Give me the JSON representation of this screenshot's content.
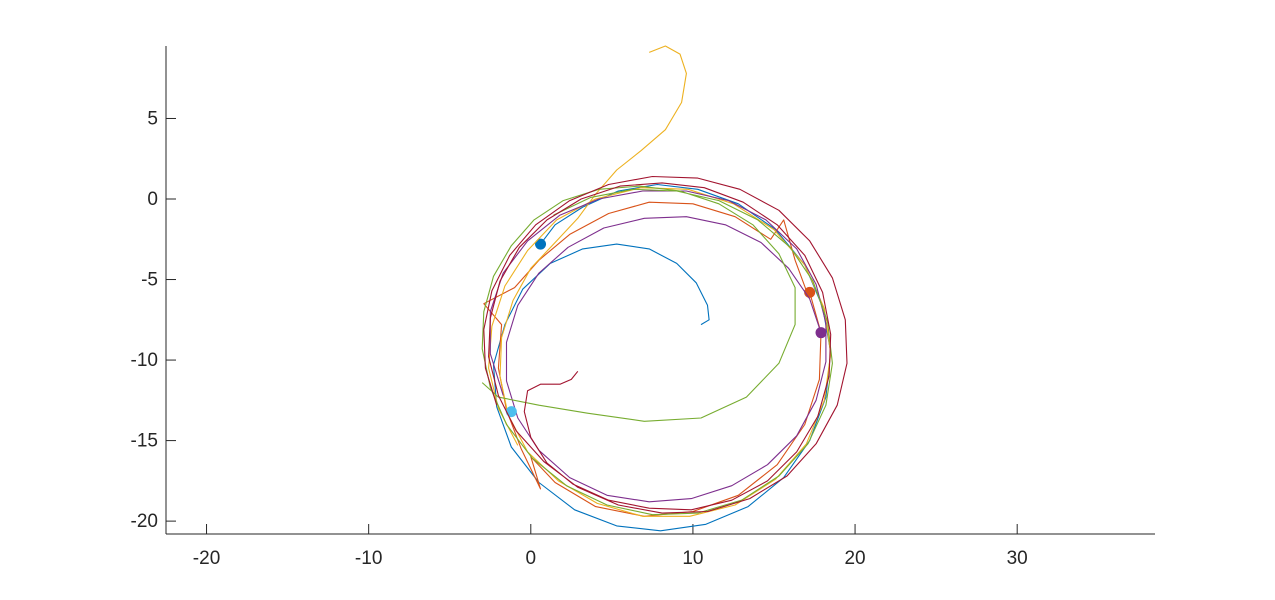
{
  "chart_data": {
    "type": "line",
    "title": "",
    "xlabel": "",
    "ylabel": "",
    "xlim": [
      -22.5,
      38.5
    ],
    "ylim": [
      -20.8,
      9.5
    ],
    "xticks": [
      -20,
      -10,
      0,
      10,
      20,
      30
    ],
    "yticks": [
      -20,
      -15,
      -10,
      -5,
      0,
      5
    ],
    "grid": false,
    "legend": "none",
    "series": [
      {
        "color": "#0072BD",
        "marker_end": true,
        "points": [
          [
            10.5,
            -7.8
          ],
          [
            11.0,
            -7.5
          ],
          [
            10.9,
            -6.6
          ],
          [
            10.2,
            -5.2
          ],
          [
            9.0,
            -4.0
          ],
          [
            7.3,
            -3.1
          ],
          [
            5.3,
            -2.8
          ],
          [
            3.2,
            -3.1
          ],
          [
            1.2,
            -4.0
          ],
          [
            -0.5,
            -5.6
          ],
          [
            -1.6,
            -7.8
          ],
          [
            -2.3,
            -10.3
          ],
          [
            -2.1,
            -12.9
          ],
          [
            -1.2,
            -15.4
          ],
          [
            0.5,
            -17.6
          ],
          [
            2.7,
            -19.3
          ],
          [
            5.3,
            -20.3
          ],
          [
            8.0,
            -20.6
          ],
          [
            10.8,
            -20.2
          ],
          [
            13.4,
            -19.1
          ],
          [
            15.6,
            -17.3
          ],
          [
            17.2,
            -15.0
          ],
          [
            18.2,
            -12.3
          ],
          [
            18.5,
            -9.5
          ],
          [
            18.0,
            -6.7
          ],
          [
            16.9,
            -4.1
          ],
          [
            15.1,
            -1.9
          ],
          [
            12.8,
            -0.3
          ],
          [
            10.3,
            0.6
          ],
          [
            7.8,
            0.9
          ],
          [
            5.4,
            0.5
          ],
          [
            3.2,
            -0.5
          ],
          [
            1.5,
            -1.6
          ],
          [
            0.6,
            -2.8
          ]
        ]
      },
      {
        "color": "#D95319",
        "marker_end": true,
        "points": [
          [
            17.2,
            -5.8
          ],
          [
            17.9,
            -8.3
          ],
          [
            17.8,
            -11.2
          ],
          [
            16.9,
            -14.0
          ],
          [
            15.2,
            -16.5
          ],
          [
            12.8,
            -18.4
          ],
          [
            10.0,
            -19.4
          ],
          [
            7.0,
            -19.7
          ],
          [
            4.0,
            -19.1
          ],
          [
            1.5,
            -17.6
          ],
          [
            0.0,
            -16.0
          ],
          [
            0.6,
            -18.0
          ],
          [
            -0.6,
            -15.5
          ],
          [
            -1.5,
            -13.1
          ],
          [
            -2.0,
            -10.5
          ],
          [
            -1.8,
            -7.8
          ],
          [
            -2.9,
            -6.5
          ],
          [
            -1.0,
            -5.5
          ],
          [
            0.5,
            -3.8
          ],
          [
            2.4,
            -2.2
          ],
          [
            4.8,
            -0.9
          ],
          [
            7.3,
            -0.2
          ],
          [
            10.0,
            -0.3
          ],
          [
            12.6,
            -1.1
          ],
          [
            14.8,
            -2.5
          ],
          [
            15.6,
            -1.3
          ],
          [
            16.3,
            -3.8
          ],
          [
            17.0,
            -5.7
          ],
          [
            17.2,
            -5.8
          ]
        ]
      },
      {
        "color": "#EDB120",
        "marker_end": false,
        "points": [
          [
            7.3,
            9.1
          ],
          [
            8.3,
            9.5
          ],
          [
            9.2,
            9.0
          ],
          [
            9.6,
            7.8
          ],
          [
            9.3,
            6.0
          ],
          [
            8.3,
            4.3
          ],
          [
            6.8,
            3.0
          ],
          [
            5.3,
            1.8
          ],
          [
            4.0,
            0.3
          ],
          [
            2.9,
            -1.2
          ],
          [
            1.5,
            -2.7
          ],
          [
            0.0,
            -4.3
          ],
          [
            -1.1,
            -6.3
          ],
          [
            -1.8,
            -8.6
          ],
          [
            -1.9,
            -11.0
          ],
          [
            -1.4,
            -13.4
          ],
          [
            -0.2,
            -15.7
          ],
          [
            1.7,
            -17.5
          ],
          [
            4.1,
            -18.9
          ],
          [
            6.9,
            -19.7
          ],
          [
            9.8,
            -19.7
          ],
          [
            12.6,
            -19.0
          ],
          [
            15.1,
            -17.4
          ],
          [
            17.0,
            -15.2
          ],
          [
            18.1,
            -12.5
          ],
          [
            18.5,
            -9.6
          ],
          [
            18.1,
            -6.8
          ],
          [
            16.9,
            -4.1
          ],
          [
            15.0,
            -1.9
          ],
          [
            12.5,
            -0.3
          ],
          [
            9.7,
            0.6
          ],
          [
            6.8,
            0.7
          ],
          [
            4.0,
            0.0
          ],
          [
            1.6,
            -1.3
          ],
          [
            -0.2,
            -3.2
          ],
          [
            -1.6,
            -5.4
          ],
          [
            -2.4,
            -7.9
          ],
          [
            -2.6,
            -10.5
          ],
          [
            -2.0,
            -13.0
          ],
          [
            -0.8,
            -15.3
          ]
        ]
      },
      {
        "color": "#7E2F8E",
        "marker_end": true,
        "points": [
          [
            -1.7,
            -12.2
          ],
          [
            -2.5,
            -9.6
          ],
          [
            -2.5,
            -7.0
          ],
          [
            -1.7,
            -4.6
          ],
          [
            -0.2,
            -2.6
          ],
          [
            1.8,
            -1.0
          ],
          [
            4.2,
            0.0
          ],
          [
            6.9,
            0.5
          ],
          [
            9.6,
            0.5
          ],
          [
            12.2,
            -0.1
          ],
          [
            14.5,
            -1.3
          ],
          [
            16.4,
            -3.1
          ],
          [
            17.6,
            -5.3
          ],
          [
            18.2,
            -7.7
          ],
          [
            18.2,
            -10.1
          ],
          [
            17.6,
            -12.5
          ],
          [
            16.4,
            -14.7
          ],
          [
            14.6,
            -16.5
          ],
          [
            12.4,
            -17.8
          ],
          [
            9.9,
            -18.6
          ],
          [
            7.3,
            -18.8
          ],
          [
            4.7,
            -18.4
          ],
          [
            2.4,
            -17.3
          ],
          [
            0.5,
            -15.6
          ],
          [
            -0.8,
            -13.6
          ],
          [
            -1.5,
            -11.3
          ],
          [
            -1.5,
            -8.9
          ],
          [
            -0.8,
            -6.6
          ],
          [
            0.5,
            -4.6
          ],
          [
            2.3,
            -3.0
          ],
          [
            4.5,
            -1.8
          ],
          [
            7.0,
            -1.2
          ],
          [
            9.6,
            -1.1
          ],
          [
            12.0,
            -1.6
          ],
          [
            14.2,
            -2.7
          ],
          [
            15.9,
            -4.3
          ],
          [
            17.2,
            -6.2
          ],
          [
            17.9,
            -8.3
          ]
        ]
      },
      {
        "color": "#77AC30",
        "marker_end": false,
        "points": [
          [
            -3.0,
            -11.4
          ],
          [
            -2.0,
            -12.3
          ],
          [
            0.5,
            -12.8
          ],
          [
            3.5,
            -13.3
          ],
          [
            7.0,
            -13.8
          ],
          [
            10.5,
            -13.6
          ],
          [
            13.3,
            -12.3
          ],
          [
            15.3,
            -10.2
          ],
          [
            16.3,
            -7.8
          ],
          [
            16.3,
            -5.5
          ],
          [
            15.3,
            -3.4
          ],
          [
            13.7,
            -1.6
          ],
          [
            11.6,
            -0.3
          ],
          [
            9.2,
            0.5
          ],
          [
            6.7,
            0.8
          ],
          [
            4.2,
            0.6
          ],
          [
            2.0,
            -0.1
          ],
          [
            0.2,
            -1.3
          ],
          [
            -1.2,
            -2.9
          ],
          [
            -2.3,
            -4.8
          ],
          [
            -2.9,
            -7.0
          ],
          [
            -3.0,
            -9.3
          ],
          [
            -2.5,
            -11.7
          ],
          [
            -1.5,
            -14.0
          ],
          [
            0.1,
            -16.1
          ],
          [
            2.2,
            -17.8
          ],
          [
            4.7,
            -19.0
          ],
          [
            7.5,
            -19.6
          ],
          [
            10.3,
            -19.5
          ],
          [
            13.0,
            -18.7
          ],
          [
            15.3,
            -17.2
          ],
          [
            17.1,
            -15.2
          ],
          [
            18.2,
            -12.8
          ],
          [
            18.6,
            -10.2
          ],
          [
            18.3,
            -7.6
          ],
          [
            17.4,
            -5.1
          ],
          [
            16.0,
            -3.0
          ],
          [
            14.0,
            -1.3
          ],
          [
            11.6,
            -0.1
          ],
          [
            9.0,
            0.5
          ],
          [
            6.3,
            0.6
          ],
          [
            3.7,
            0.1
          ],
          [
            1.4,
            -1.0
          ]
        ]
      },
      {
        "color": "#4DBEEE",
        "marker_end": true,
        "points": [
          [
            -1.2,
            -13.2
          ]
        ]
      },
      {
        "color": "#A2142F",
        "marker_end": false,
        "points": [
          [
            2.9,
            -10.7
          ],
          [
            2.5,
            -11.2
          ],
          [
            1.8,
            -11.5
          ],
          [
            0.6,
            -11.5
          ],
          [
            -0.2,
            -11.9
          ],
          [
            -0.4,
            -13.2
          ],
          [
            0.0,
            -14.8
          ],
          [
            1.0,
            -16.4
          ],
          [
            2.6,
            -17.7
          ],
          [
            4.8,
            -18.7
          ],
          [
            7.3,
            -19.2
          ],
          [
            9.9,
            -19.3
          ],
          [
            12.4,
            -18.7
          ],
          [
            14.6,
            -17.5
          ],
          [
            16.4,
            -15.7
          ],
          [
            17.7,
            -13.5
          ],
          [
            18.4,
            -11.0
          ],
          [
            18.5,
            -8.4
          ],
          [
            18.0,
            -5.8
          ],
          [
            16.9,
            -3.5
          ],
          [
            15.2,
            -1.6
          ],
          [
            13.1,
            -0.2
          ],
          [
            10.7,
            0.7
          ],
          [
            8.1,
            1.0
          ],
          [
            5.5,
            0.8
          ],
          [
            3.1,
            0.0
          ],
          [
            1.0,
            -1.3
          ],
          [
            -0.7,
            -3.0
          ],
          [
            -1.9,
            -5.1
          ],
          [
            -2.5,
            -7.4
          ],
          [
            -2.6,
            -9.8
          ],
          [
            -2.0,
            -12.2
          ],
          [
            -0.9,
            -14.4
          ],
          [
            0.8,
            -16.3
          ],
          [
            2.9,
            -17.9
          ],
          [
            5.4,
            -19.0
          ],
          [
            8.1,
            -19.5
          ],
          [
            10.9,
            -19.4
          ],
          [
            13.5,
            -18.6
          ],
          [
            15.8,
            -17.2
          ],
          [
            17.6,
            -15.2
          ],
          [
            18.9,
            -12.8
          ],
          [
            19.5,
            -10.2
          ],
          [
            19.4,
            -7.5
          ],
          [
            18.6,
            -4.9
          ],
          [
            17.2,
            -2.6
          ],
          [
            15.3,
            -0.7
          ],
          [
            12.9,
            0.6
          ],
          [
            10.3,
            1.3
          ],
          [
            7.5,
            1.4
          ],
          [
            4.8,
            0.9
          ],
          [
            2.4,
            -0.1
          ],
          [
            0.3,
            -1.6
          ],
          [
            -1.3,
            -3.5
          ],
          [
            -2.4,
            -5.7
          ],
          [
            -2.9,
            -8.1
          ],
          [
            -2.8,
            -10.5
          ],
          [
            -2.1,
            -12.8
          ]
        ]
      }
    ]
  }
}
